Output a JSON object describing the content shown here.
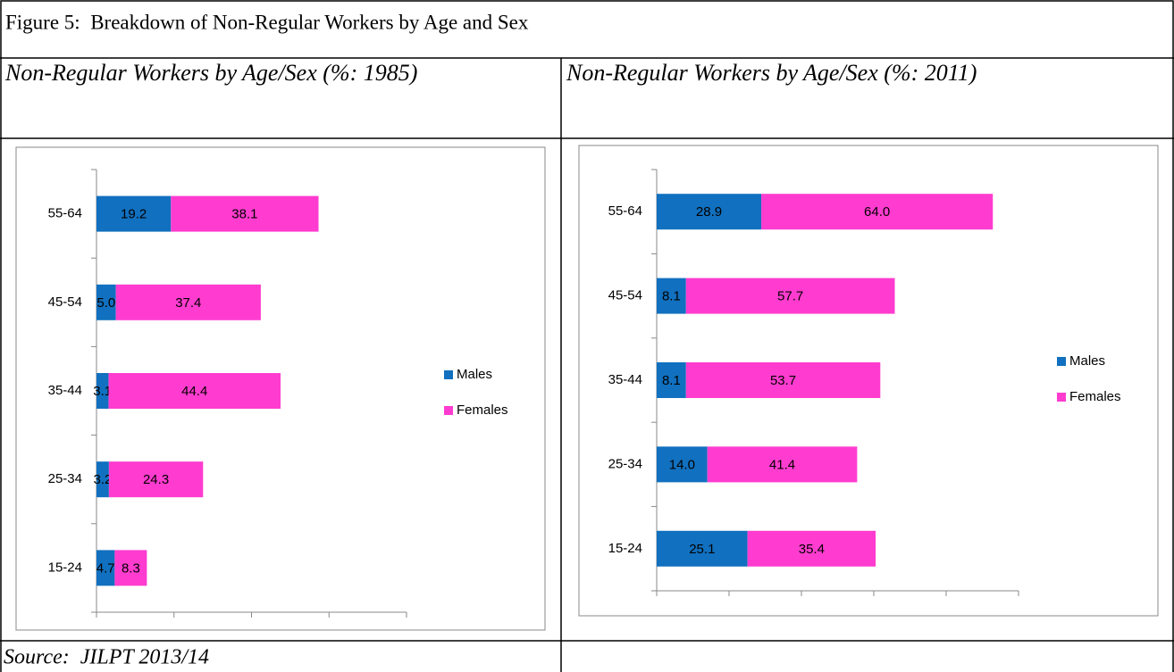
{
  "title": "Figure 5:  Breakdown of Non-Regular Workers by Age and Sex",
  "chart_data": [
    {
      "type": "bar",
      "orientation": "horizontal",
      "stacked": true,
      "title": "Non-Regular Workers by Age/Sex (%: 1985)",
      "categories": [
        "15-24",
        "25-34",
        "35-44",
        "45-54",
        "55-64"
      ],
      "series": [
        {
          "name": "Males",
          "color": "#1170bf",
          "values": [
            4.7,
            3.2,
            3.1,
            5.0,
            19.2
          ],
          "value_labels": [
            "4.7",
            "3.2",
            "3.1",
            "5.0",
            "19.2"
          ]
        },
        {
          "name": "Females",
          "color": "#ff3ccf",
          "values": [
            8.3,
            24.3,
            44.4,
            37.4,
            38.1
          ],
          "value_labels": [
            "8.3",
            "24.3",
            "44.4",
            "37.4",
            "38.1"
          ]
        }
      ],
      "xlim": [
        0,
        80
      ],
      "xticks": [
        0,
        20,
        40,
        60,
        80
      ],
      "legend": "right"
    },
    {
      "type": "bar",
      "orientation": "horizontal",
      "stacked": true,
      "title": "Non-Regular Workers by Age/Sex (%: 2011)",
      "categories": [
        "15-24",
        "25-34",
        "35-44",
        "45-54",
        "55-64"
      ],
      "series": [
        {
          "name": "Males",
          "color": "#1170bf",
          "values": [
            25.1,
            14.0,
            8.1,
            8.1,
            28.9
          ],
          "value_labels": [
            "25.1",
            "14.0",
            "8.1",
            "8.1",
            "28.9"
          ]
        },
        {
          "name": "Females",
          "color": "#ff3ccf",
          "values": [
            35.4,
            41.4,
            53.7,
            57.7,
            64.0
          ],
          "value_labels": [
            "35.4",
            "41.4",
            "53.7",
            "57.7",
            "64.0"
          ]
        }
      ],
      "xlim": [
        0,
        100
      ],
      "xticks": [
        0,
        20,
        40,
        60,
        80,
        100
      ],
      "legend": "right"
    }
  ],
  "source": "Source:  JILPT 2013/14"
}
